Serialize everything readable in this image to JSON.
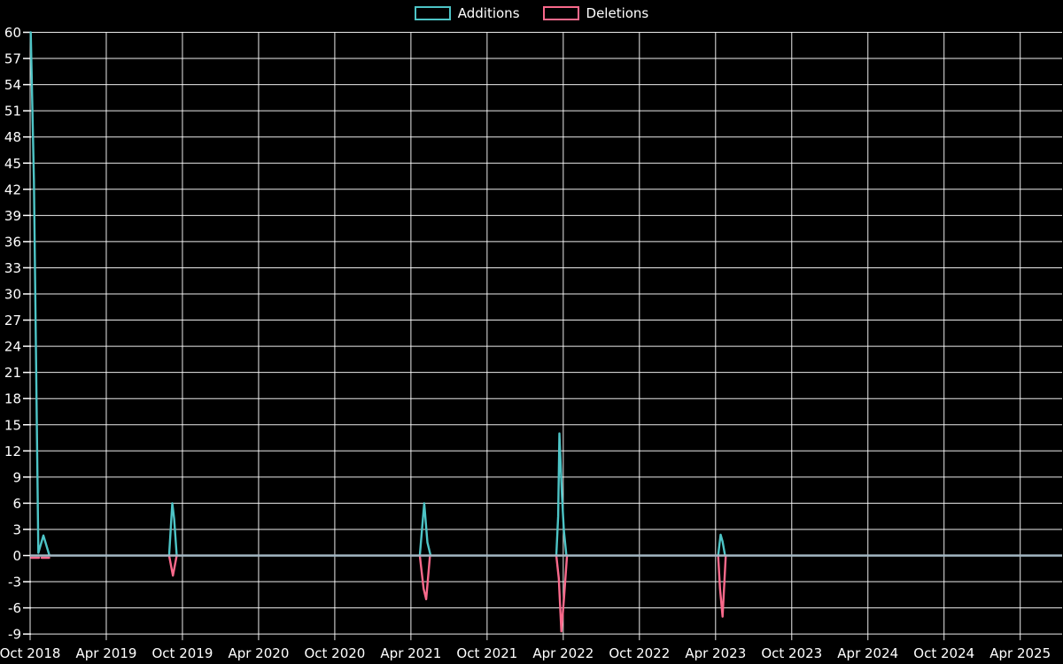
{
  "chart_data": {
    "type": "line",
    "title": "",
    "description": "Weekly additions and deletions code-frequency chart on black background",
    "legend_position": "top-center",
    "legend": [
      {
        "label": "Additions",
        "color": "#4DC4C6"
      },
      {
        "label": "Deletions",
        "color": "#F9698B"
      }
    ],
    "x_axis": {
      "tick_labels": [
        "Oct 2018",
        "Apr 2019",
        "Oct 2019",
        "Apr 2020",
        "Oct 2020",
        "Apr 2021",
        "Oct 2021",
        "Apr 2022",
        "Oct 2022",
        "Apr 2023",
        "Oct 2023",
        "Apr 2024",
        "Oct 2024",
        "Apr 2025"
      ],
      "months_between_ticks": 6,
      "total_months_shown": 81.3,
      "x_unit": "months since Oct 2018"
    },
    "y_axis": {
      "min": -9,
      "max": 60,
      "step": 3,
      "ticks": [
        60,
        57,
        54,
        51,
        48,
        45,
        42,
        39,
        36,
        33,
        30,
        27,
        24,
        21,
        18,
        15,
        12,
        9,
        6,
        3,
        0,
        -3,
        -6,
        -9
      ]
    },
    "grid": {
      "on": true,
      "color": "#FFFFFF",
      "background": "#000000",
      "zero_line_color": "#A4B8C4",
      "text_color": "#FFFFFF"
    },
    "series": [
      {
        "name": "Additions",
        "color": "#4DC4C6",
        "baseline": 0,
        "segments": [
          [
            [
              0.05,
              60
            ],
            [
              0.3,
              43
            ],
            [
              0.65,
              0.3
            ],
            [
              1.05,
              2.3
            ],
            [
              1.5,
              0.1
            ]
          ],
          [
            [
              10.95,
              0
            ],
            [
              11.2,
              6.0
            ],
            [
              11.35,
              4.2
            ],
            [
              11.55,
              0
            ]
          ],
          [
            [
              30.7,
              0
            ],
            [
              31.05,
              6.0
            ],
            [
              31.3,
              1.5
            ],
            [
              31.55,
              0
            ]
          ],
          [
            [
              41.45,
              0
            ],
            [
              41.6,
              4.5
            ],
            [
              41.7,
              14
            ],
            [
              41.9,
              6.8
            ],
            [
              42.05,
              2.8
            ],
            [
              42.25,
              0
            ]
          ],
          [
            [
              54.2,
              0
            ],
            [
              54.4,
              2.4
            ],
            [
              54.55,
              1.6
            ],
            [
              54.75,
              0
            ]
          ]
        ],
        "peak_values": [
          60,
          2.3,
          6,
          6,
          14,
          2.4
        ]
      },
      {
        "name": "Deletions",
        "color": "#F9698B",
        "baseline": 0,
        "segments": [
          [
            [
              0.1,
              -0.25
            ],
            [
              0.7,
              -0.25
            ]
          ],
          [
            [
              0.9,
              -0.25
            ],
            [
              1.5,
              -0.25
            ]
          ],
          [
            [
              10.95,
              0
            ],
            [
              11.25,
              -2.3
            ],
            [
              11.55,
              0
            ]
          ],
          [
            [
              30.7,
              0
            ],
            [
              31.0,
              -3.8
            ],
            [
              31.2,
              -5.0
            ],
            [
              31.5,
              0
            ]
          ],
          [
            [
              41.45,
              0
            ],
            [
              41.65,
              -2.6
            ],
            [
              41.85,
              -8.7
            ],
            [
              42.05,
              -5.0
            ],
            [
              42.3,
              0
            ]
          ],
          [
            [
              54.2,
              0
            ],
            [
              54.35,
              -3.8
            ],
            [
              54.55,
              -7.0
            ],
            [
              54.8,
              0
            ]
          ]
        ],
        "peak_values": [
          -2.3,
          -5,
          -8.7,
          -7
        ]
      }
    ]
  }
}
